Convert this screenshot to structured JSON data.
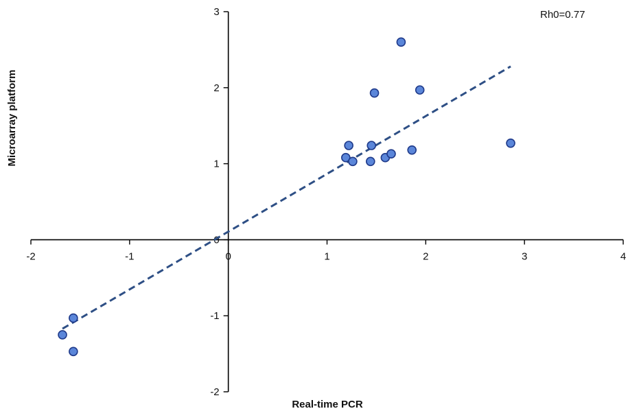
{
  "chart_data": {
    "type": "scatter",
    "xlabel": "Real-time PCR",
    "ylabel": "Microarray platform",
    "xlim": [
      -2,
      4
    ],
    "ylim": [
      -2,
      3
    ],
    "x_ticks": [
      -2,
      -1,
      0,
      1,
      2,
      3,
      4
    ],
    "y_ticks": [
      -2,
      -1,
      0,
      1,
      2,
      3
    ],
    "x_tick_labels": [
      "-2",
      "-1",
      "0",
      "1",
      "2",
      "3",
      "4"
    ],
    "y_tick_labels": [
      "-2",
      "-1",
      "0",
      "1",
      "2",
      "3"
    ],
    "grid": false,
    "annotation": "Rh0=0.77",
    "points": [
      {
        "x": -1.68,
        "y": -1.25
      },
      {
        "x": -1.57,
        "y": -1.03
      },
      {
        "x": -1.57,
        "y": -1.47
      },
      {
        "x": 1.19,
        "y": 1.08
      },
      {
        "x": 1.22,
        "y": 1.24
      },
      {
        "x": 1.26,
        "y": 1.03
      },
      {
        "x": 1.44,
        "y": 1.03
      },
      {
        "x": 1.45,
        "y": 1.24
      },
      {
        "x": 1.48,
        "y": 1.93
      },
      {
        "x": 1.59,
        "y": 1.08
      },
      {
        "x": 1.65,
        "y": 1.13
      },
      {
        "x": 1.75,
        "y": 2.6
      },
      {
        "x": 1.86,
        "y": 1.18
      },
      {
        "x": 1.94,
        "y": 1.97
      },
      {
        "x": 2.86,
        "y": 1.27
      }
    ],
    "trendline": {
      "style": "dashed",
      "color": "#2e4f85",
      "start": {
        "x": -1.68,
        "y": -1.17
      },
      "end": {
        "x": 2.86,
        "y": 2.28
      }
    },
    "marker_fill": "#5b86d9",
    "marker_stroke": "#1f3a8a"
  }
}
